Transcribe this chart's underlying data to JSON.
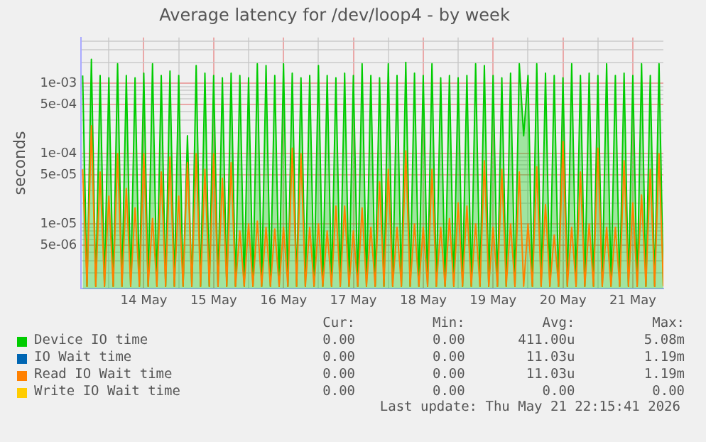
{
  "chart_data": {
    "type": "line",
    "title": "Average latency for /dev/loop4 - by week",
    "ylabel": "seconds",
    "log": "y",
    "grid": true,
    "legend": "bottom",
    "ylim": [
      1.2e-06,
      0.0045
    ],
    "yticks": [
      {
        "value": 2e-06,
        "label": null
      },
      {
        "value": 3e-06,
        "label": null
      },
      {
        "value": 4e-06,
        "label": null
      },
      {
        "value": 5e-06,
        "label": "5e-06"
      },
      {
        "value": 6e-06,
        "label": null
      },
      {
        "value": 7e-06,
        "label": null
      },
      {
        "value": 8e-06,
        "label": null
      },
      {
        "value": 9e-06,
        "label": null
      },
      {
        "value": 1e-05,
        "label": "1e-05"
      },
      {
        "value": 2e-05,
        "label": null
      },
      {
        "value": 3e-05,
        "label": null
      },
      {
        "value": 4e-05,
        "label": null
      },
      {
        "value": 5e-05,
        "label": "5e-05"
      },
      {
        "value": 6e-05,
        "label": null
      },
      {
        "value": 7e-05,
        "label": null
      },
      {
        "value": 8e-05,
        "label": null
      },
      {
        "value": 9e-05,
        "label": null
      },
      {
        "value": 0.0001,
        "label": "1e-04"
      },
      {
        "value": 0.0002,
        "label": null
      },
      {
        "value": 0.0003,
        "label": null
      },
      {
        "value": 0.0004,
        "label": null
      },
      {
        "value": 0.0005,
        "label": "5e-04"
      },
      {
        "value": 0.0006,
        "label": null
      },
      {
        "value": 0.0007,
        "label": null
      },
      {
        "value": 0.0008,
        "label": null
      },
      {
        "value": 0.0009,
        "label": null
      },
      {
        "value": 0.001,
        "label": "1e-03"
      },
      {
        "value": 0.002,
        "label": null
      },
      {
        "value": 0.003,
        "label": null
      },
      {
        "value": 0.004,
        "label": null
      }
    ],
    "xlim": [
      "2026-05-13T14:30",
      "2026-05-21T22:30"
    ],
    "xticks": [
      {
        "value": "2026-05-14T00:00",
        "label": null
      },
      {
        "value": "2026-05-14T12:00",
        "label": "14 May"
      },
      {
        "value": "2026-05-15T00:00",
        "label": null
      },
      {
        "value": "2026-05-15T12:00",
        "label": "15 May"
      },
      {
        "value": "2026-05-16T00:00",
        "label": null
      },
      {
        "value": "2026-05-16T12:00",
        "label": "16 May"
      },
      {
        "value": "2026-05-17T00:00",
        "label": null
      },
      {
        "value": "2026-05-17T12:00",
        "label": "17 May"
      },
      {
        "value": "2026-05-18T00:00",
        "label": null
      },
      {
        "value": "2026-05-18T12:00",
        "label": "18 May"
      },
      {
        "value": "2026-05-19T00:00",
        "label": null
      },
      {
        "value": "2026-05-19T12:00",
        "label": "19 May"
      },
      {
        "value": "2026-05-20T00:00",
        "label": null
      },
      {
        "value": "2026-05-20T12:00",
        "label": "20 May"
      },
      {
        "value": "2026-05-21T00:00",
        "label": null
      },
      {
        "value": "2026-05-21T12:00",
        "label": "21 May"
      }
    ],
    "x": [
      "2026-05-13T15:00",
      "2026-05-13T16:30",
      "2026-05-13T18:00",
      "2026-05-13T19:30",
      "2026-05-13T21:00",
      "2026-05-13T22:30",
      "2026-05-14T00:00",
      "2026-05-14T01:30",
      "2026-05-14T03:00",
      "2026-05-14T04:30",
      "2026-05-14T06:00",
      "2026-05-14T07:30",
      "2026-05-14T09:00",
      "2026-05-14T10:30",
      "2026-05-14T12:00",
      "2026-05-14T13:30",
      "2026-05-14T15:00",
      "2026-05-14T16:30",
      "2026-05-14T18:00",
      "2026-05-14T19:30",
      "2026-05-14T21:00",
      "2026-05-14T22:30",
      "2026-05-15T00:00",
      "2026-05-15T01:30",
      "2026-05-15T03:00",
      "2026-05-15T04:30",
      "2026-05-15T06:00",
      "2026-05-15T07:30",
      "2026-05-15T09:00",
      "2026-05-15T10:30",
      "2026-05-15T12:00",
      "2026-05-15T13:30",
      "2026-05-15T15:00",
      "2026-05-15T16:30",
      "2026-05-15T18:00",
      "2026-05-15T19:30",
      "2026-05-15T21:00",
      "2026-05-15T22:30",
      "2026-05-16T00:00",
      "2026-05-16T01:30",
      "2026-05-16T03:00",
      "2026-05-16T04:30",
      "2026-05-16T06:00",
      "2026-05-16T07:30",
      "2026-05-16T09:00",
      "2026-05-16T10:30",
      "2026-05-16T12:00",
      "2026-05-16T13:30",
      "2026-05-16T15:00",
      "2026-05-16T16:30",
      "2026-05-16T18:00",
      "2026-05-16T19:30",
      "2026-05-16T21:00",
      "2026-05-16T22:30",
      "2026-05-17T00:00",
      "2026-05-17T01:30",
      "2026-05-17T03:00",
      "2026-05-17T04:30",
      "2026-05-17T06:00",
      "2026-05-17T07:30",
      "2026-05-17T09:00",
      "2026-05-17T10:30",
      "2026-05-17T12:00",
      "2026-05-17T13:30",
      "2026-05-17T15:00",
      "2026-05-17T16:30",
      "2026-05-17T18:00",
      "2026-05-17T19:30",
      "2026-05-17T21:00",
      "2026-05-17T22:30",
      "2026-05-18T00:00",
      "2026-05-18T01:30",
      "2026-05-18T03:00",
      "2026-05-18T04:30",
      "2026-05-18T06:00",
      "2026-05-18T07:30",
      "2026-05-18T09:00",
      "2026-05-18T10:30",
      "2026-05-18T12:00",
      "2026-05-18T13:30",
      "2026-05-18T15:00",
      "2026-05-18T16:30",
      "2026-05-18T18:00",
      "2026-05-18T19:30",
      "2026-05-18T21:00",
      "2026-05-18T22:30",
      "2026-05-19T00:00",
      "2026-05-19T01:30",
      "2026-05-19T03:00",
      "2026-05-19T04:30",
      "2026-05-19T06:00",
      "2026-05-19T07:30",
      "2026-05-19T09:00",
      "2026-05-19T10:30",
      "2026-05-19T12:00",
      "2026-05-19T13:30",
      "2026-05-19T15:00",
      "2026-05-19T16:30",
      "2026-05-19T18:00",
      "2026-05-19T19:30",
      "2026-05-19T21:00",
      "2026-05-19T22:30",
      "2026-05-20T00:00",
      "2026-05-20T01:30",
      "2026-05-20T03:00",
      "2026-05-20T04:30",
      "2026-05-20T06:00",
      "2026-05-20T07:30",
      "2026-05-20T09:00",
      "2026-05-20T10:30",
      "2026-05-20T12:00",
      "2026-05-20T13:30",
      "2026-05-20T15:00",
      "2026-05-20T16:30",
      "2026-05-20T18:00",
      "2026-05-20T19:30",
      "2026-05-20T21:00",
      "2026-05-20T22:30",
      "2026-05-21T00:00",
      "2026-05-21T01:30",
      "2026-05-21T03:00",
      "2026-05-21T04:30",
      "2026-05-21T06:00",
      "2026-05-21T07:30",
      "2026-05-21T09:00",
      "2026-05-21T10:30",
      "2026-05-21T12:00",
      "2026-05-21T13:30",
      "2026-05-21T15:00",
      "2026-05-21T16:30",
      "2026-05-21T18:00",
      "2026-05-21T19:30",
      "2026-05-21T21:00",
      "2026-05-21T22:30"
    ],
    "series": [
      {
        "name": "Device IO time",
        "type": "area",
        "color": "#00cc00",
        "values": [
          0.0013,
          1.3e-06,
          0.0022,
          1.3e-06,
          0.0013,
          1.3e-06,
          0.0012,
          1.3e-06,
          0.0019,
          1.3e-06,
          0.0013,
          1.3e-06,
          0.0012,
          1.3e-06,
          0.0014,
          1.3e-06,
          0.0019,
          1.3e-06,
          0.0013,
          1.3e-06,
          0.0015,
          1.3e-06,
          0.0013,
          1.3e-06,
          0.00018,
          1.3e-06,
          0.0018,
          1.3e-06,
          0.0014,
          1.3e-06,
          0.0013,
          1.3e-06,
          0.0012,
          1.3e-06,
          0.0014,
          1.3e-06,
          0.0013,
          1.3e-06,
          0.0012,
          1.3e-06,
          0.0019,
          1.3e-06,
          0.0018,
          1.3e-06,
          0.0013,
          1.3e-06,
          0.0019,
          1.3e-06,
          0.0014,
          1.3e-06,
          0.0012,
          1.3e-06,
          0.0013,
          1.3e-06,
          0.0018,
          1.3e-06,
          0.0013,
          1.3e-06,
          0.0012,
          1.3e-06,
          0.0014,
          1.3e-06,
          0.0013,
          1.3e-06,
          0.0019,
          1.3e-06,
          0.0013,
          1.3e-06,
          0.0012,
          1.3e-06,
          0.0019,
          1.3e-06,
          0.0013,
          1.3e-06,
          0.002,
          1.3e-06,
          0.0014,
          1.3e-06,
          0.0013,
          1.3e-06,
          0.0019,
          1.3e-06,
          0.0012,
          1.3e-06,
          0.0013,
          1.3e-06,
          0.0012,
          1.3e-06,
          0.0013,
          1.3e-06,
          0.0019,
          1.3e-06,
          0.0018,
          1.3e-06,
          0.0013,
          1.3e-06,
          0.0012,
          1.3e-06,
          0.0014,
          1.3e-06,
          0.0019,
          0.00018,
          0.0013,
          1.3e-06,
          0.0019,
          1.3e-06,
          0.0014,
          1.3e-06,
          0.0013,
          1.3e-06,
          0.0012,
          1.3e-06,
          0.0019,
          1.3e-06,
          0.0013,
          1.3e-06,
          0.0014,
          1.3e-06,
          0.0013,
          1.3e-06,
          0.0019,
          1.3e-06,
          0.0013,
          1.3e-06,
          0.0014,
          1.3e-06,
          0.0013,
          1.3e-06,
          0.0019,
          1.3e-06,
          0.0013,
          1.3e-06,
          0.0019,
          1.3e-06
        ]
      },
      {
        "name": "IO Wait time",
        "color": "#0066b3",
        "values": [
          null,
          null,
          null,
          null,
          null,
          null,
          null,
          null,
          null,
          null,
          null,
          null,
          null,
          null,
          null,
          null,
          null,
          null,
          null,
          null,
          null,
          null,
          null,
          null,
          null,
          null,
          null,
          null,
          null,
          null,
          null,
          null,
          null,
          null,
          null,
          null,
          null,
          null,
          null,
          null,
          null,
          null,
          null,
          null,
          null,
          null,
          null,
          null,
          null,
          null,
          null,
          null,
          null,
          null,
          null,
          null,
          null,
          null,
          null,
          null,
          null,
          null,
          null,
          null,
          null,
          null,
          null,
          null,
          null,
          null,
          null,
          null,
          null,
          null,
          null,
          null,
          null,
          null,
          null,
          null,
          null,
          null,
          null,
          null,
          null,
          null,
          null,
          null,
          null,
          null,
          null,
          null,
          null,
          null,
          null,
          null,
          null,
          null,
          null,
          null,
          null,
          null,
          null,
          null,
          null,
          null,
          null,
          null,
          null,
          null,
          null,
          null,
          null,
          null,
          null,
          null,
          null,
          null,
          null,
          null,
          null,
          null,
          null,
          null,
          null,
          null,
          null,
          null,
          null,
          null,
          null,
          null,
          null,
          null
        ]
      },
      {
        "name": "Read IO Wait time",
        "color": "#ff8000",
        "values": [
          6e-05,
          1.3e-06,
          0.00025,
          1.3e-06,
          5.5e-05,
          1.3e-06,
          2.5e-05,
          1.3e-06,
          0.0001,
          1.3e-06,
          3.2e-05,
          1.3e-06,
          1.7e-05,
          1.3e-06,
          0.0001,
          1.3e-06,
          1.2e-05,
          1.3e-06,
          5.5e-05,
          1.3e-06,
          9e-05,
          1.3e-06,
          2.5e-05,
          1.3e-06,
          7.5e-05,
          1.3e-06,
          0.0001,
          1.3e-06,
          6e-05,
          1.3e-06,
          0.0001,
          1.3e-06,
          4.5e-05,
          1.3e-06,
          7.5e-05,
          1.3e-06,
          8e-06,
          1.3e-06,
          1e-05,
          1.3e-06,
          1.1e-05,
          1.3e-06,
          9e-06,
          1.3e-06,
          8.5e-06,
          1.3e-06,
          9e-06,
          1.3e-06,
          0.00012,
          1.3e-06,
          0.0001,
          1.3e-06,
          9e-06,
          1.3e-06,
          1e-05,
          1.3e-06,
          8e-06,
          1.3e-06,
          1.8e-05,
          1.3e-06,
          1.8e-05,
          1.3e-06,
          8e-06,
          1.3e-06,
          1.7e-05,
          1.3e-06,
          9e-06,
          1.3e-06,
          4e-05,
          1.3e-06,
          6e-05,
          1.3e-06,
          9e-06,
          1.3e-06,
          0.00011,
          1.3e-06,
          1e-05,
          1.3e-06,
          9e-06,
          1.3e-06,
          6e-05,
          1.3e-06,
          9e-06,
          1.3e-06,
          1.2e-05,
          1.3e-06,
          2e-05,
          1.3e-06,
          1.8e-05,
          1.3e-06,
          1e-05,
          1.3e-06,
          8e-05,
          1.3e-06,
          9e-06,
          1.3e-06,
          6e-05,
          1.3e-06,
          1e-05,
          1.3e-06,
          5.5e-05,
          1.3e-06,
          1e-05,
          1.3e-06,
          6.5e-05,
          1.3e-06,
          1.9e-05,
          1.3e-06,
          7e-06,
          1.3e-06,
          0.00015,
          1.3e-06,
          9e-06,
          1.3e-06,
          5.5e-05,
          1.3e-06,
          1e-05,
          1.3e-06,
          0.00012,
          1.3e-06,
          9e-06,
          1.3e-06,
          9e-06,
          1.3e-06,
          8e-05,
          1.3e-06,
          2e-05,
          1.3e-06,
          2.6e-05,
          1.3e-06,
          6e-05,
          1.3e-06,
          0.0001,
          1.3e-06
        ]
      },
      {
        "name": "Write IO Wait time",
        "color": "#ffcc00",
        "values": [
          null,
          null,
          null,
          null,
          null,
          null,
          null,
          null,
          null,
          null,
          null,
          null,
          null,
          null,
          null,
          null,
          null,
          null,
          null,
          null,
          null,
          null,
          null,
          null,
          null,
          null,
          null,
          null,
          null,
          null,
          null,
          null,
          null,
          null,
          null,
          null,
          null,
          null,
          null,
          null,
          null,
          null,
          null,
          null,
          null,
          null,
          null,
          null,
          null,
          null,
          null,
          null,
          null,
          null,
          null,
          null,
          null,
          null,
          null,
          null,
          null,
          null,
          null,
          null,
          null,
          null,
          null,
          null,
          null,
          null,
          null,
          null,
          null,
          null,
          null,
          null,
          null,
          null,
          null,
          null,
          null,
          null,
          null,
          null,
          null,
          null,
          null,
          null,
          null,
          null,
          null,
          null,
          null,
          null,
          null,
          null,
          null,
          null,
          null,
          null,
          null,
          null,
          null,
          null,
          null,
          null,
          null,
          null,
          null,
          null,
          null,
          null,
          null,
          null,
          null,
          null,
          null,
          null,
          null,
          null,
          null,
          null,
          null,
          null,
          null,
          null,
          null,
          null,
          null,
          null,
          null,
          null,
          null,
          null
        ]
      }
    ],
    "annotations": [
      "Cur:",
      "Min:",
      "Avg:",
      "Max:",
      "0.00",
      "0.00",
      "411.00u",
      "5.08m",
      "0.00",
      "0.00",
      "11.03u",
      "1.19m",
      "0.00",
      "0.00",
      "11.03u",
      "1.19m",
      "0.00",
      "0.00",
      "0.00",
      "0.00",
      "Last update: Thu May 21 22:15:41 2026"
    ]
  }
}
